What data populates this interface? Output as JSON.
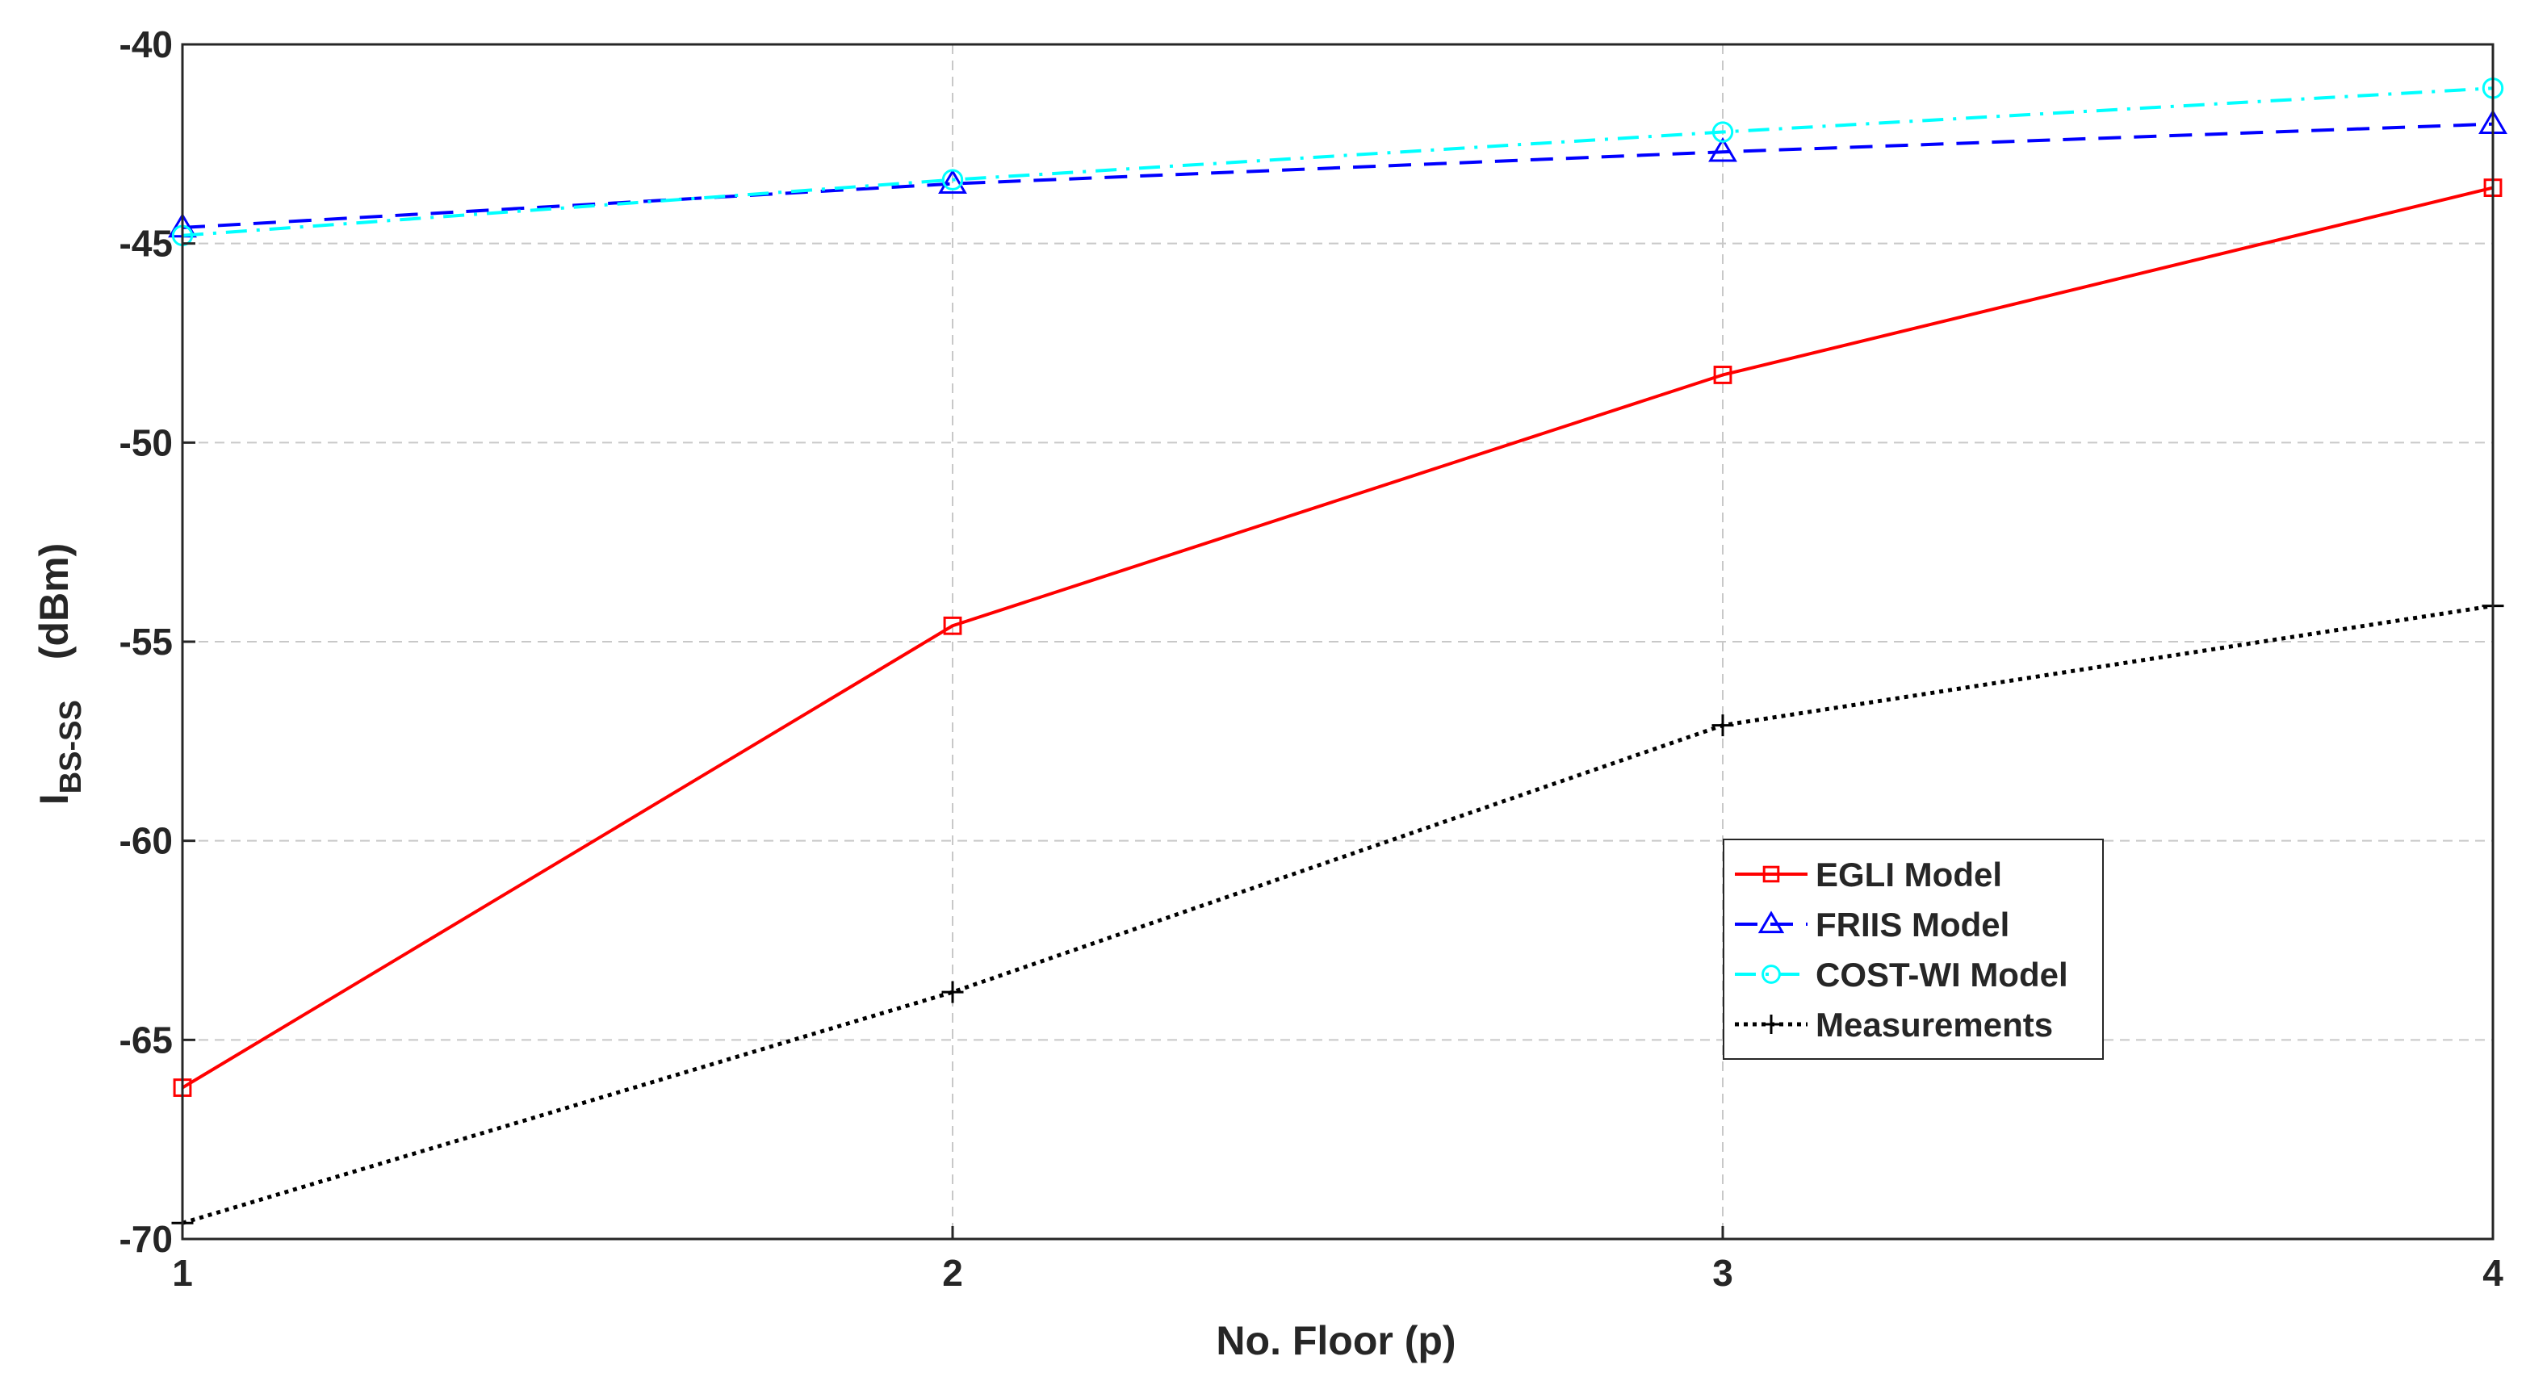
{
  "chart_data": {
    "type": "line",
    "xlabel": "No. Floor (p)",
    "ylabel_main": "I",
    "ylabel_sub": "BS-SS",
    "ylabel_unit": "(dBm)",
    "x": [
      1,
      2,
      3,
      4
    ],
    "xticks": [
      "1",
      "2",
      "3",
      "4"
    ],
    "yticks": [
      "-40",
      "-45",
      "-50",
      "-55",
      "-60",
      "-65",
      "-70"
    ],
    "xlim": [
      1,
      4
    ],
    "ylim": [
      -70,
      -40
    ],
    "grid": true,
    "legend_position": "lower-right",
    "series": [
      {
        "name": "EGLI Model",
        "values": [
          -66.2,
          -54.6,
          -48.3,
          -43.6
        ],
        "color": "#ff0000",
        "dash": "solid",
        "marker": "square"
      },
      {
        "name": "FRIIS Model",
        "values": [
          -44.6,
          -43.5,
          -42.7,
          -42.0
        ],
        "color": "#0000ff",
        "dash": "dashed",
        "marker": "triangle"
      },
      {
        "name": "COST-WI Model",
        "values": [
          -44.8,
          -43.4,
          -42.2,
          -41.1
        ],
        "color": "#00ffff",
        "dash": "dashdot",
        "marker": "circle"
      },
      {
        "name": "Measurements",
        "values": [
          -69.6,
          -63.8,
          -57.1,
          -54.1
        ],
        "color": "#000000",
        "dash": "dotted",
        "marker": "plus"
      }
    ]
  }
}
